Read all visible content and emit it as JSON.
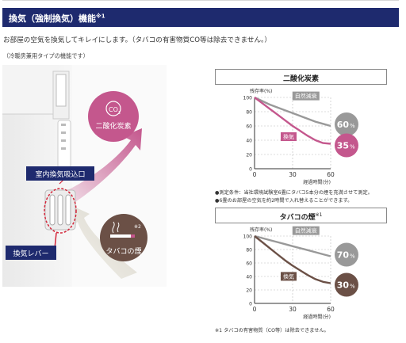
{
  "header": {
    "title": "換気（強制換気）機能",
    "title_note": "※1"
  },
  "intro_text": "お部屋の空気を換気してキレイにします。（タバコの有害物質CO等は除去できません。）",
  "note_top": "（冷暖房兼用タイプの機能です）",
  "illustration": {
    "intake_label": "室内換気吸込口",
    "lever_label": "換気レバー",
    "co2_bubble": {
      "formula": "CO",
      "subscript": "2",
      "label": "二酸化炭素"
    },
    "smoke_bubble": {
      "note": "※2",
      "label": "タバコの煙"
    },
    "colors": {
      "navy": "#1e2a6e",
      "pink": "#c4578d",
      "brown": "#6b5046",
      "red": "#d4263a"
    }
  },
  "chart_data": [
    {
      "type": "line",
      "title": "二酸化炭素",
      "ylabel": "残存率(%)",
      "xlabel": "経過時間(分)",
      "xlim": [
        0,
        60
      ],
      "ylim": [
        0,
        100
      ],
      "yticks": [
        0,
        20,
        40,
        60,
        80,
        100
      ],
      "xticks": [
        0,
        30,
        60
      ],
      "series": [
        {
          "name": "自然減衰",
          "color": "#999999",
          "end_label": "60%",
          "end_value": "60",
          "end_unit": "%",
          "points": [
            [
              0,
              100
            ],
            [
              6,
              95
            ],
            [
              12,
              90
            ],
            [
              18,
              86
            ],
            [
              24,
              82
            ],
            [
              30,
              78
            ],
            [
              36,
              74
            ],
            [
              42,
              70
            ],
            [
              48,
              66
            ],
            [
              54,
              63
            ],
            [
              60,
              60
            ]
          ]
        },
        {
          "name": "換気",
          "color": "#c4578d",
          "end_label": "35%",
          "end_value": "35",
          "end_unit": "%",
          "points": [
            [
              0,
              100
            ],
            [
              6,
              92
            ],
            [
              12,
              84
            ],
            [
              18,
              76
            ],
            [
              24,
              68
            ],
            [
              30,
              60
            ],
            [
              36,
              53
            ],
            [
              42,
              46
            ],
            [
              48,
              40
            ],
            [
              54,
              36
            ],
            [
              60,
              35
            ]
          ]
        }
      ],
      "footnotes": [
        "●測定条件：当社環境試験室6畳にタバコ5本分の煙を充満させて測定。",
        "●6畳のお部屋の空気を約2時間で入れ替えることができます。"
      ]
    },
    {
      "type": "line",
      "title": "タバコの煙",
      "title_note": "※1",
      "ylabel": "残存率(%)",
      "xlabel": "経過時間(分)",
      "xlim": [
        0,
        60
      ],
      "ylim": [
        0,
        100
      ],
      "yticks": [
        0,
        20,
        40,
        60,
        80,
        100
      ],
      "xticks": [
        0,
        30,
        60
      ],
      "series": [
        {
          "name": "自然減衰",
          "color": "#999999",
          "end_label": "70%",
          "end_value": "70",
          "end_unit": "%",
          "points": [
            [
              0,
              100
            ],
            [
              6,
              97
            ],
            [
              12,
              94
            ],
            [
              18,
              91
            ],
            [
              24,
              88
            ],
            [
              30,
              85
            ],
            [
              36,
              82
            ],
            [
              42,
              79
            ],
            [
              48,
              76
            ],
            [
              54,
              73
            ],
            [
              60,
              70
            ]
          ]
        },
        {
          "name": "換気",
          "color": "#6b5046",
          "end_label": "30%",
          "end_value": "30",
          "end_unit": "%",
          "points": [
            [
              0,
              100
            ],
            [
              6,
              91
            ],
            [
              12,
              82
            ],
            [
              18,
              73
            ],
            [
              24,
              64
            ],
            [
              30,
              56
            ],
            [
              36,
              49
            ],
            [
              42,
              42
            ],
            [
              48,
              36
            ],
            [
              54,
              32
            ],
            [
              60,
              30
            ]
          ]
        }
      ],
      "footnotes": [
        "※1 タバコの有害物質（CO等）は除去できません。"
      ]
    }
  ]
}
